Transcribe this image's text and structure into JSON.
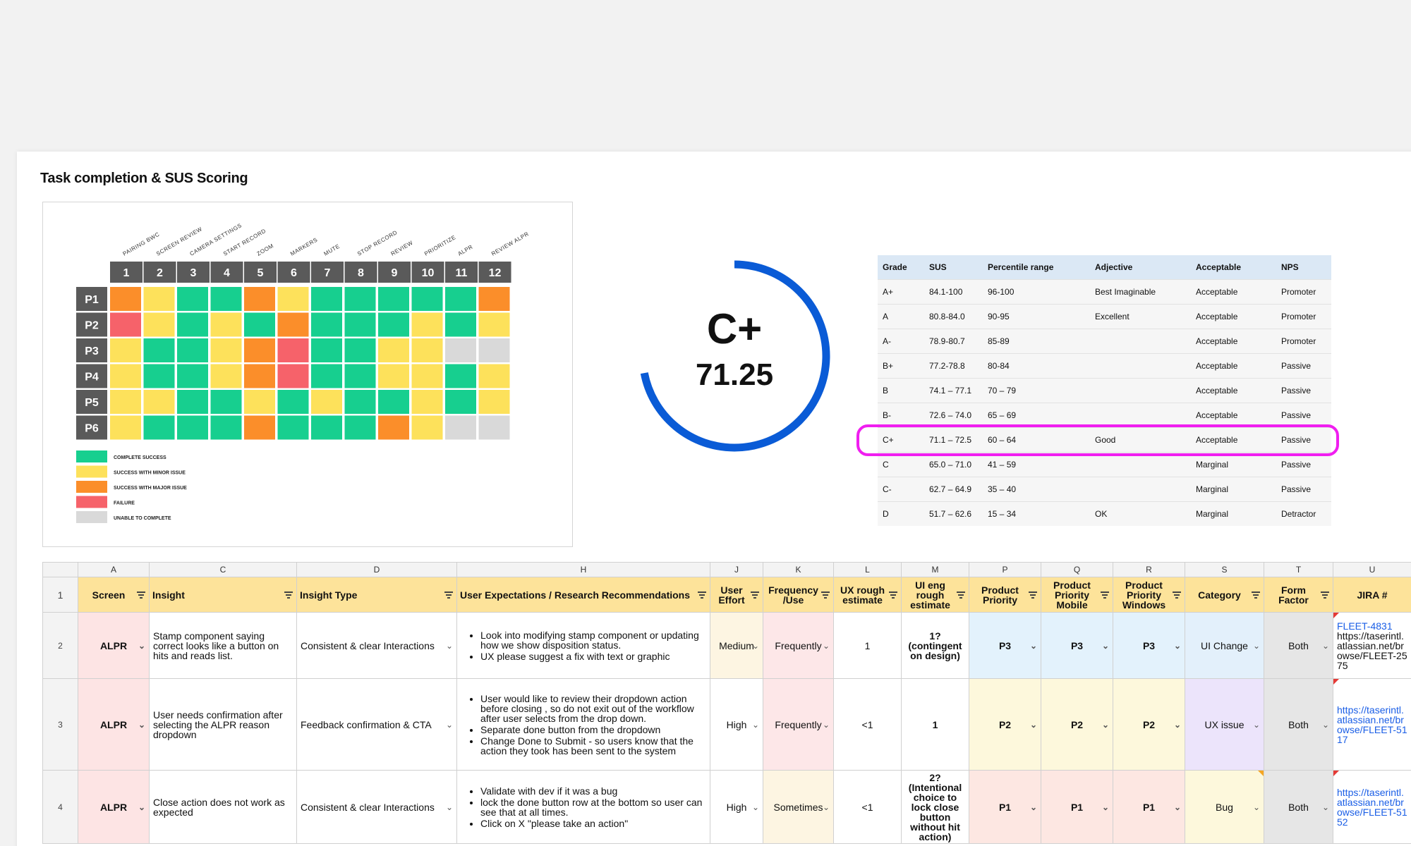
{
  "title": "Task completion & SUS Scoring",
  "colors": {
    "complete": "#17cf8f",
    "minor": "#fde15b",
    "major": "#fb8e2a",
    "failure": "#f6626a",
    "unable": "#d9d9d9",
    "header_dark": "#5a5a5a",
    "ring": "#0a5bd6",
    "highlight": "#f01ef0"
  },
  "heatmap": {
    "tasks": [
      "PAIRING BWC",
      "SCREEN REVIEW",
      "CAMERA SETTINGS",
      "START RECORD",
      "ZOOM",
      "MARKERS",
      "MUTE",
      "STOP RECORD",
      "REVIEW",
      "PRIORITIZE",
      "ALPR",
      "REVIEW ALPR"
    ],
    "columns": [
      "1",
      "2",
      "3",
      "4",
      "5",
      "6",
      "7",
      "8",
      "9",
      "10",
      "11",
      "12"
    ],
    "participants": [
      "P1",
      "P2",
      "P3",
      "P4",
      "P5",
      "P6"
    ],
    "rows": [
      [
        "major",
        "minor",
        "complete",
        "complete",
        "major",
        "minor",
        "complete",
        "complete",
        "complete",
        "complete",
        "complete",
        "major"
      ],
      [
        "failure",
        "minor",
        "complete",
        "minor",
        "complete",
        "major",
        "complete",
        "complete",
        "complete",
        "minor",
        "complete",
        "minor"
      ],
      [
        "minor",
        "complete",
        "complete",
        "minor",
        "major",
        "failure",
        "complete",
        "complete",
        "minor",
        "minor",
        "unable",
        "unable"
      ],
      [
        "minor",
        "complete",
        "complete",
        "minor",
        "major",
        "failure",
        "complete",
        "complete",
        "minor",
        "minor",
        "complete",
        "minor"
      ],
      [
        "minor",
        "minor",
        "complete",
        "complete",
        "minor",
        "complete",
        "minor",
        "complete",
        "complete",
        "minor",
        "complete",
        "minor"
      ],
      [
        "minor",
        "complete",
        "complete",
        "complete",
        "major",
        "complete",
        "complete",
        "complete",
        "major",
        "minor",
        "unable",
        "unable"
      ]
    ],
    "legend": [
      {
        "key": "complete",
        "label": "COMPLETE SUCCESS"
      },
      {
        "key": "minor",
        "label": "SUCCESS WITH MINOR ISSUE"
      },
      {
        "key": "major",
        "label": "SUCCESS WITH MAJOR ISSUE"
      },
      {
        "key": "failure",
        "label": "FAILURE"
      },
      {
        "key": "unable",
        "label": "UNABLE TO COMPLETE"
      }
    ]
  },
  "grade": {
    "letter": "C+",
    "score": "71.25",
    "progress": 0.72
  },
  "sus_table": {
    "headers": [
      "Grade",
      "SUS",
      "Percentile range",
      "Adjective",
      "Acceptable",
      "NPS"
    ],
    "rows": [
      [
        "A+",
        "84.1-100",
        "96-100",
        "Best Imaginable",
        "Acceptable",
        "Promoter"
      ],
      [
        "A",
        "80.8-84.0",
        "90-95",
        "Excellent",
        "Acceptable",
        "Promoter"
      ],
      [
        "A-",
        "78.9-80.7",
        "85-89",
        "",
        "Acceptable",
        "Promoter"
      ],
      [
        "B+",
        "77.2-78.8",
        "80-84",
        "",
        "Acceptable",
        "Passive"
      ],
      [
        "B",
        "74.1 – 77.1",
        "70 – 79",
        "",
        "Acceptable",
        "Passive"
      ],
      [
        "B-",
        "72.6 – 74.0",
        "65 – 69",
        "",
        "Acceptable",
        "Passive"
      ],
      [
        "C+",
        "71.1 – 72.5",
        "60 – 64",
        "Good",
        "Acceptable",
        "Passive"
      ],
      [
        "C",
        "65.0 – 71.0",
        "41 – 59",
        "",
        "Marginal",
        "Passive"
      ],
      [
        "C-",
        "62.7 – 64.9",
        "35 – 40",
        "",
        "Marginal",
        "Passive"
      ],
      [
        "D",
        "51.7 – 62.6",
        "15 – 34",
        "OK",
        "Marginal",
        "Detractor"
      ]
    ]
  },
  "sheet": {
    "col_letters": [
      "A",
      "C",
      "D",
      "H",
      "J",
      "K",
      "L",
      "M",
      "P",
      "Q",
      "R",
      "S",
      "T",
      "U"
    ],
    "headers": [
      "Screen",
      "Insight",
      "Insight Type",
      "User Expectations / Research Recommendations",
      "User Effort",
      "Frequency /Use",
      "UX rough estimate",
      "UI eng rough estimate",
      "Product Priority",
      "Product Priority Mobile",
      "Product Priority Windows",
      "Category",
      "Form Factor",
      "JIRA #"
    ],
    "rows": [
      {
        "num": "2",
        "screen": "ALPR",
        "insight": "Stamp component saying correct looks like a button on hits and reads list.",
        "type": "Consistent & clear Interactions",
        "recs": [
          "Look into modifying stamp component or updating how we show disposition status.",
          "UX please suggest a fix with text or graphic"
        ],
        "effort": "Medium",
        "freq": "Frequently",
        "ux": "1",
        "ui": "1? (contingent on design)",
        "p": "P3",
        "pm": "P3",
        "pw": "P3",
        "category": "UI Change",
        "form": "Both",
        "jira": [
          "FLEET-4831",
          "https://taserintl.atlassian.net/browse/FLEET-2575"
        ]
      },
      {
        "num": "3",
        "screen": "ALPR",
        "insight": "User needs confirmation after selecting the ALPR reason dropdown",
        "type": "Feedback confirmation & CTA",
        "recs": [
          "User would like to review their dropdown action before closing , so do not exit out of the workflow after user selects from the drop down.",
          "Separate done button from the dropdown",
          "Change Done to Submit - so users know that the action they took has been sent to the system"
        ],
        "effort": "High",
        "freq": "Frequently",
        "ux": "<1",
        "ui": "1",
        "p": "P2",
        "pm": "P2",
        "pw": "P2",
        "category": "UX issue",
        "form": "Both",
        "jira": [
          "https://taserintl.atlassian.net/browse/FLEET-5117"
        ]
      },
      {
        "num": "4",
        "screen": "ALPR",
        "insight": "Close action does not work as expected",
        "type": "Consistent & clear Interactions",
        "recs": [
          "Validate with dev if it was a bug",
          "lock the done button row at the bottom so user can see that at all times.",
          "Click on X \"please take an action\""
        ],
        "effort": "High",
        "freq": "Sometimes",
        "ux": "<1",
        "ui": "2? (Intentional choice to lock close button without hit action)",
        "p": "P1",
        "pm": "P1",
        "pw": "P1",
        "category": "Bug",
        "form": "Both",
        "jira": [
          "https://taserintl.atlassian.net/browse/FLEET-5152"
        ]
      }
    ]
  }
}
